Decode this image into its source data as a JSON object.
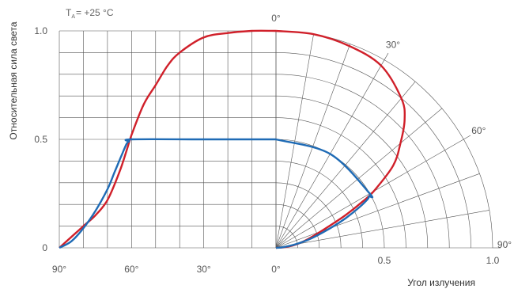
{
  "chart_data": {
    "type": "line",
    "subtype": "radiation pattern: rectangular (left) + polar (right)",
    "xlabel": "Угол излучения",
    "ylabel": "Относительная сила света",
    "condition": {
      "prefix": "T",
      "subscript": "A",
      "suffix": "= +25 °C"
    },
    "left_axis": {
      "x_ticks": [
        "90°",
        "60°",
        "30°",
        "0°"
      ],
      "xlim_deg": [
        90,
        0
      ]
    },
    "right_axis": {
      "x_ticks": [
        "0.5",
        "1.0"
      ]
    },
    "y_ticks": [
      "0",
      "0.5",
      "1.0"
    ],
    "ylim": [
      0,
      1.0
    ],
    "polar_angle_labels": [
      "0°",
      "30°",
      "60°",
      "90°"
    ],
    "grid": true,
    "colors": {
      "red_series": "#d0202a",
      "blue_series": "#1f6bb5",
      "grid": "#555555"
    },
    "series": [
      {
        "color_key": "red_series",
        "angles_deg": [
          0,
          10,
          20,
          30,
          40,
          45,
          50,
          55,
          60,
          62,
          65,
          70,
          75,
          80,
          85,
          90
        ],
        "values": [
          1.0,
          1.0,
          0.99,
          0.97,
          0.9,
          0.84,
          0.75,
          0.66,
          0.52,
          0.45,
          0.35,
          0.22,
          0.15,
          0.1,
          0.05,
          0.0
        ]
      },
      {
        "color_key": "blue_series",
        "angles_deg": [
          0,
          30,
          60,
          61,
          62,
          64,
          67,
          70,
          75,
          80,
          85,
          90
        ],
        "values": [
          0.5,
          0.5,
          0.5,
          0.49,
          0.48,
          0.43,
          0.35,
          0.27,
          0.17,
          0.09,
          0.03,
          0.0
        ]
      }
    ]
  }
}
